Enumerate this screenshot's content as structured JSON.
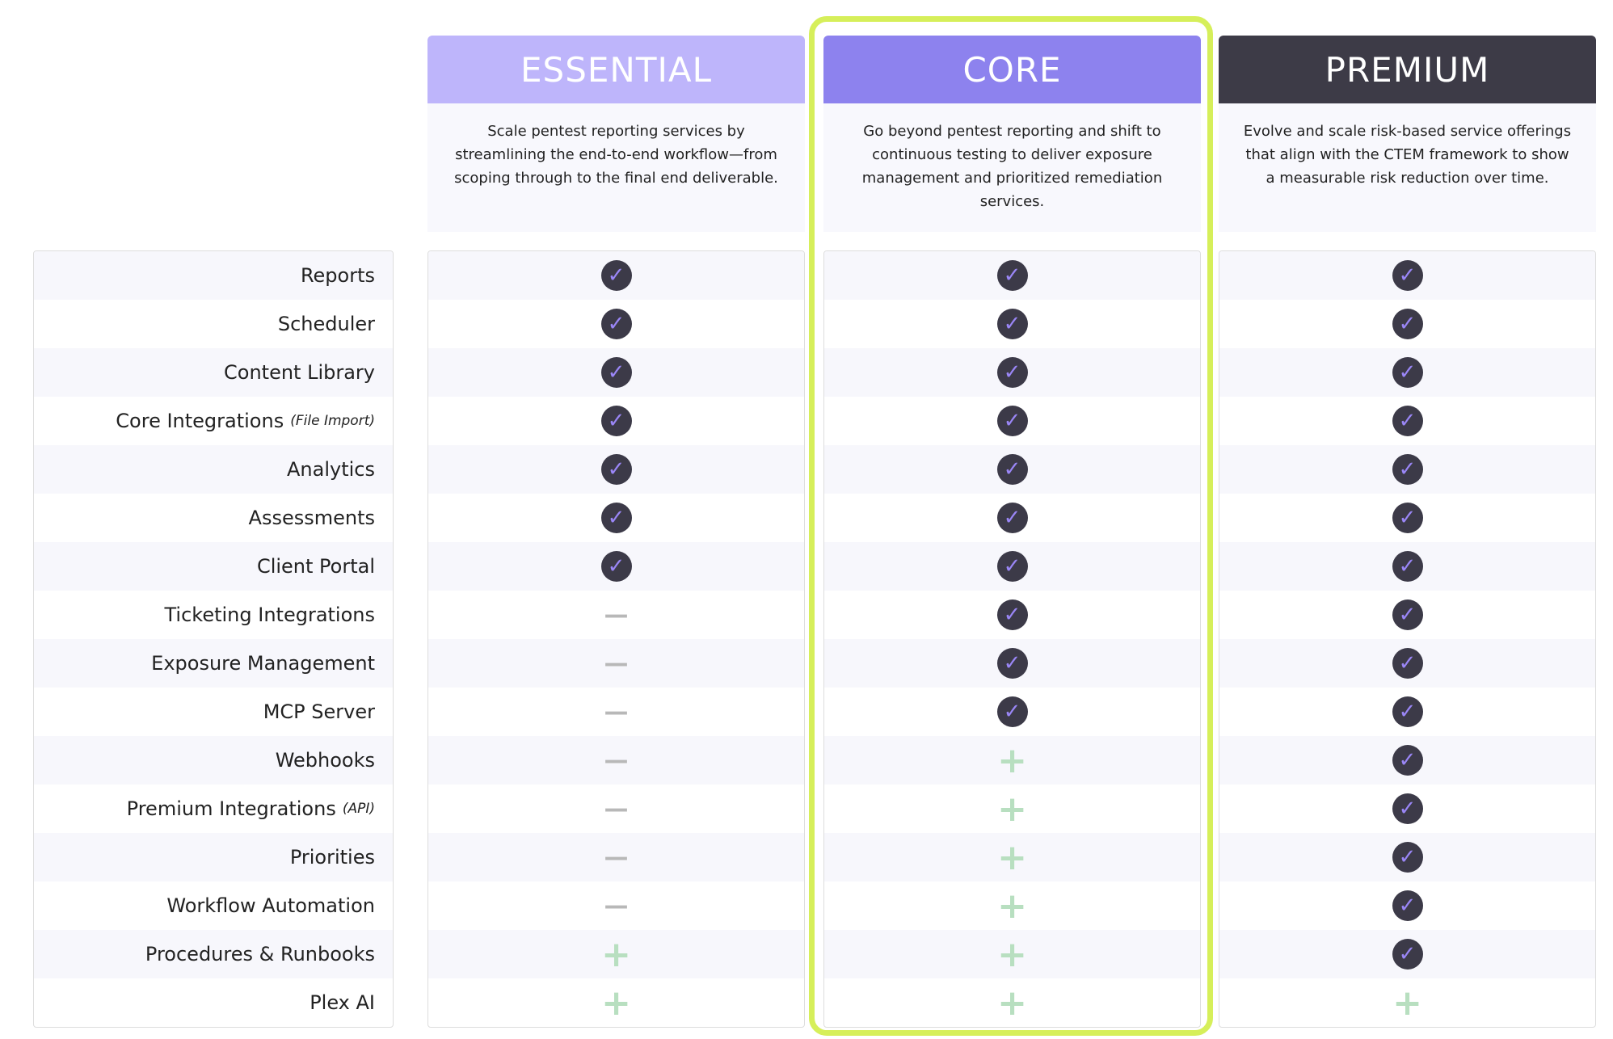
{
  "plans": [
    {
      "name": "ESSENTIAL",
      "description": "Scale pentest reporting services by streamlining the end-to-end workflow—from scoping through to the final end deliverable."
    },
    {
      "name": "CORE",
      "description": "Go beyond pentest reporting and shift to continuous testing to deliver exposure management and prioritized remediation services."
    },
    {
      "name": "PREMIUM",
      "description": "Evolve and scale risk-based service offerings that align with the CTEM framework to show a measurable risk reduction over time."
    }
  ],
  "features": [
    {
      "label": "Reports",
      "cells": [
        "✓",
        "✓",
        "✓"
      ]
    },
    {
      "label": "Scheduler",
      "cells": [
        "✓",
        "✓",
        "✓"
      ]
    },
    {
      "label": "Content Library",
      "cells": [
        "✓",
        "✓",
        "✓"
      ]
    },
    {
      "label": "Core Integrations",
      "note": "(File Import)",
      "cells": [
        "✓",
        "✓",
        "✓"
      ]
    },
    {
      "label": "Analytics",
      "cells": [
        "✓",
        "✓",
        "✓"
      ]
    },
    {
      "label": "Assessments",
      "cells": [
        "✓",
        "✓",
        "✓"
      ]
    },
    {
      "label": "Client Portal",
      "cells": [
        "✓",
        "✓",
        "✓"
      ]
    },
    {
      "label": "Ticketing Integrations",
      "cells": [
        "—",
        "✓",
        "✓"
      ]
    },
    {
      "label": "Exposure Management",
      "cells": [
        "—",
        "✓",
        "✓"
      ]
    },
    {
      "label": "MCP Server",
      "cells": [
        "—",
        "✓",
        "✓"
      ]
    },
    {
      "label": "Webhooks",
      "cells": [
        "—",
        "+",
        "✓"
      ]
    },
    {
      "label": "Premium Integrations",
      "note": "(API)",
      "cells": [
        "—",
        "+",
        "✓"
      ]
    },
    {
      "label": "Priorities",
      "cells": [
        "—",
        "+",
        "✓"
      ]
    },
    {
      "label": "Workflow Automation",
      "cells": [
        "—",
        "+",
        "✓"
      ]
    },
    {
      "label": "Procedures & Runbooks",
      "cells": [
        "+",
        "+",
        "✓"
      ]
    },
    {
      "label": "Plex AI",
      "cells": [
        "+",
        "+",
        "+"
      ]
    }
  ]
}
